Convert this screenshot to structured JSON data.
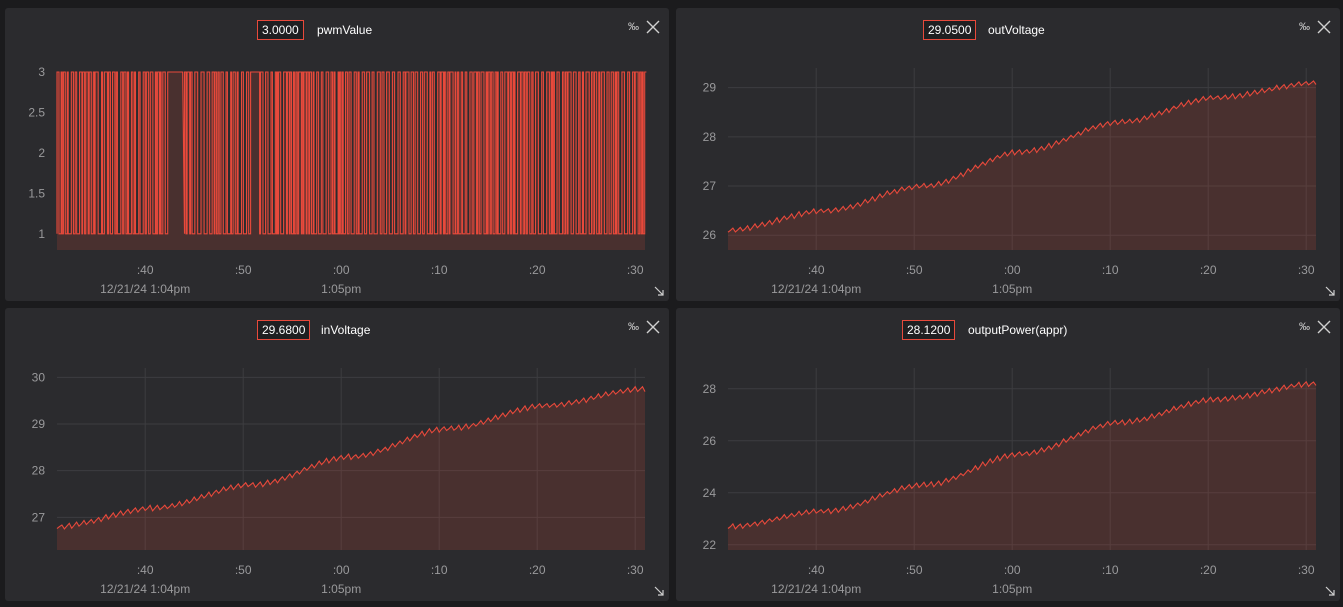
{
  "theme": {
    "line_color": "#e8493b",
    "background": "#2b2b2e"
  },
  "panels": [
    {
      "title": "pwmValue",
      "current_value": "3.0000",
      "percent_toggle": "‰",
      "chart_data": {
        "type": "line",
        "title": "pwmValue",
        "xlabel": "",
        "ylabel": "",
        "ylim": [
          0.8,
          3.05
        ],
        "yticks": [
          1,
          1.5,
          2,
          2.5,
          3
        ],
        "yticklabels": [
          "1",
          "1.5",
          "2",
          "2.5",
          "3"
        ],
        "xticklabels": [
          ":40",
          ":50",
          ":00",
          ":10",
          ":20",
          ":30"
        ],
        "date_labels": [
          {
            "under": ":40",
            "text": "12/21/24 1:04pm"
          },
          {
            "under": ":00",
            "text": "1:05pm"
          }
        ],
        "time_range": [
          "1:04:31pm",
          "1:05:31pm"
        ],
        "series": [
          {
            "values_description_free": true,
            "min": 1,
            "max": 3,
            "pattern": "square-wave alternating between 1 and 3",
            "last": 3.0
          }
        ],
        "grid": false,
        "area_fill": true
      }
    },
    {
      "title": "outVoltage",
      "current_value": "29.0500",
      "percent_toggle": "‰",
      "chart_data": {
        "type": "area",
        "title": "outVoltage",
        "xlabel": "",
        "ylabel": "",
        "ylim": [
          25.7,
          29.4
        ],
        "yticks": [
          26,
          27,
          28,
          29
        ],
        "yticklabels": [
          "26",
          "27",
          "28",
          "29"
        ],
        "xticklabels": [
          ":40",
          ":50",
          ":00",
          ":10",
          ":20",
          ":30"
        ],
        "date_labels": [
          {
            "under": ":40",
            "text": "12/21/24 1:04pm"
          },
          {
            "under": ":00",
            "text": "1:05pm"
          }
        ],
        "x": [
          0,
          10,
          20,
          30,
          40,
          50,
          60
        ],
        "series": [
          {
            "values": [
              26.1,
              26.5,
              27.0,
              27.7,
              28.3,
              28.8,
              29.1
            ],
            "last": 29.05
          }
        ],
        "grid": true
      }
    },
    {
      "title": "inVoltage",
      "current_value": "29.6800",
      "percent_toggle": "‰",
      "chart_data": {
        "type": "area",
        "title": "inVoltage",
        "xlabel": "",
        "ylabel": "",
        "ylim": [
          26.3,
          30.2
        ],
        "yticks": [
          27,
          28,
          29,
          30
        ],
        "yticklabels": [
          "27",
          "28",
          "29",
          "30"
        ],
        "xticklabels": [
          ":40",
          ":50",
          ":00",
          ":10",
          ":20",
          ":30"
        ],
        "date_labels": [
          {
            "under": ":40",
            "text": "12/21/24 1:04pm"
          },
          {
            "under": ":00",
            "text": "1:05pm"
          }
        ],
        "x": [
          0,
          10,
          20,
          30,
          40,
          50,
          60
        ],
        "series": [
          {
            "values": [
              26.8,
              27.2,
              27.7,
              28.3,
              28.9,
              29.4,
              29.75
            ],
            "last": 29.68
          }
        ],
        "grid": true
      }
    },
    {
      "title": "outputPower(appr)",
      "current_value": "28.1200",
      "percent_toggle": "‰",
      "chart_data": {
        "type": "area",
        "title": "outputPower(appr)",
        "xlabel": "",
        "ylabel": "",
        "ylim": [
          21.8,
          28.8
        ],
        "yticks": [
          22,
          24,
          26,
          28
        ],
        "yticklabels": [
          "22",
          "24",
          "26",
          "28"
        ],
        "xticklabels": [
          ":40",
          ":50",
          ":00",
          ":10",
          ":20",
          ":30"
        ],
        "date_labels": [
          {
            "under": ":40",
            "text": "12/21/24 1:04pm"
          },
          {
            "under": ":00",
            "text": "1:05pm"
          }
        ],
        "x": [
          0,
          10,
          20,
          30,
          40,
          50,
          60
        ],
        "series": [
          {
            "values": [
              22.7,
              23.3,
              24.3,
              25.5,
              26.7,
              27.6,
              28.2
            ],
            "last": 28.12
          }
        ],
        "grid": true
      }
    }
  ]
}
